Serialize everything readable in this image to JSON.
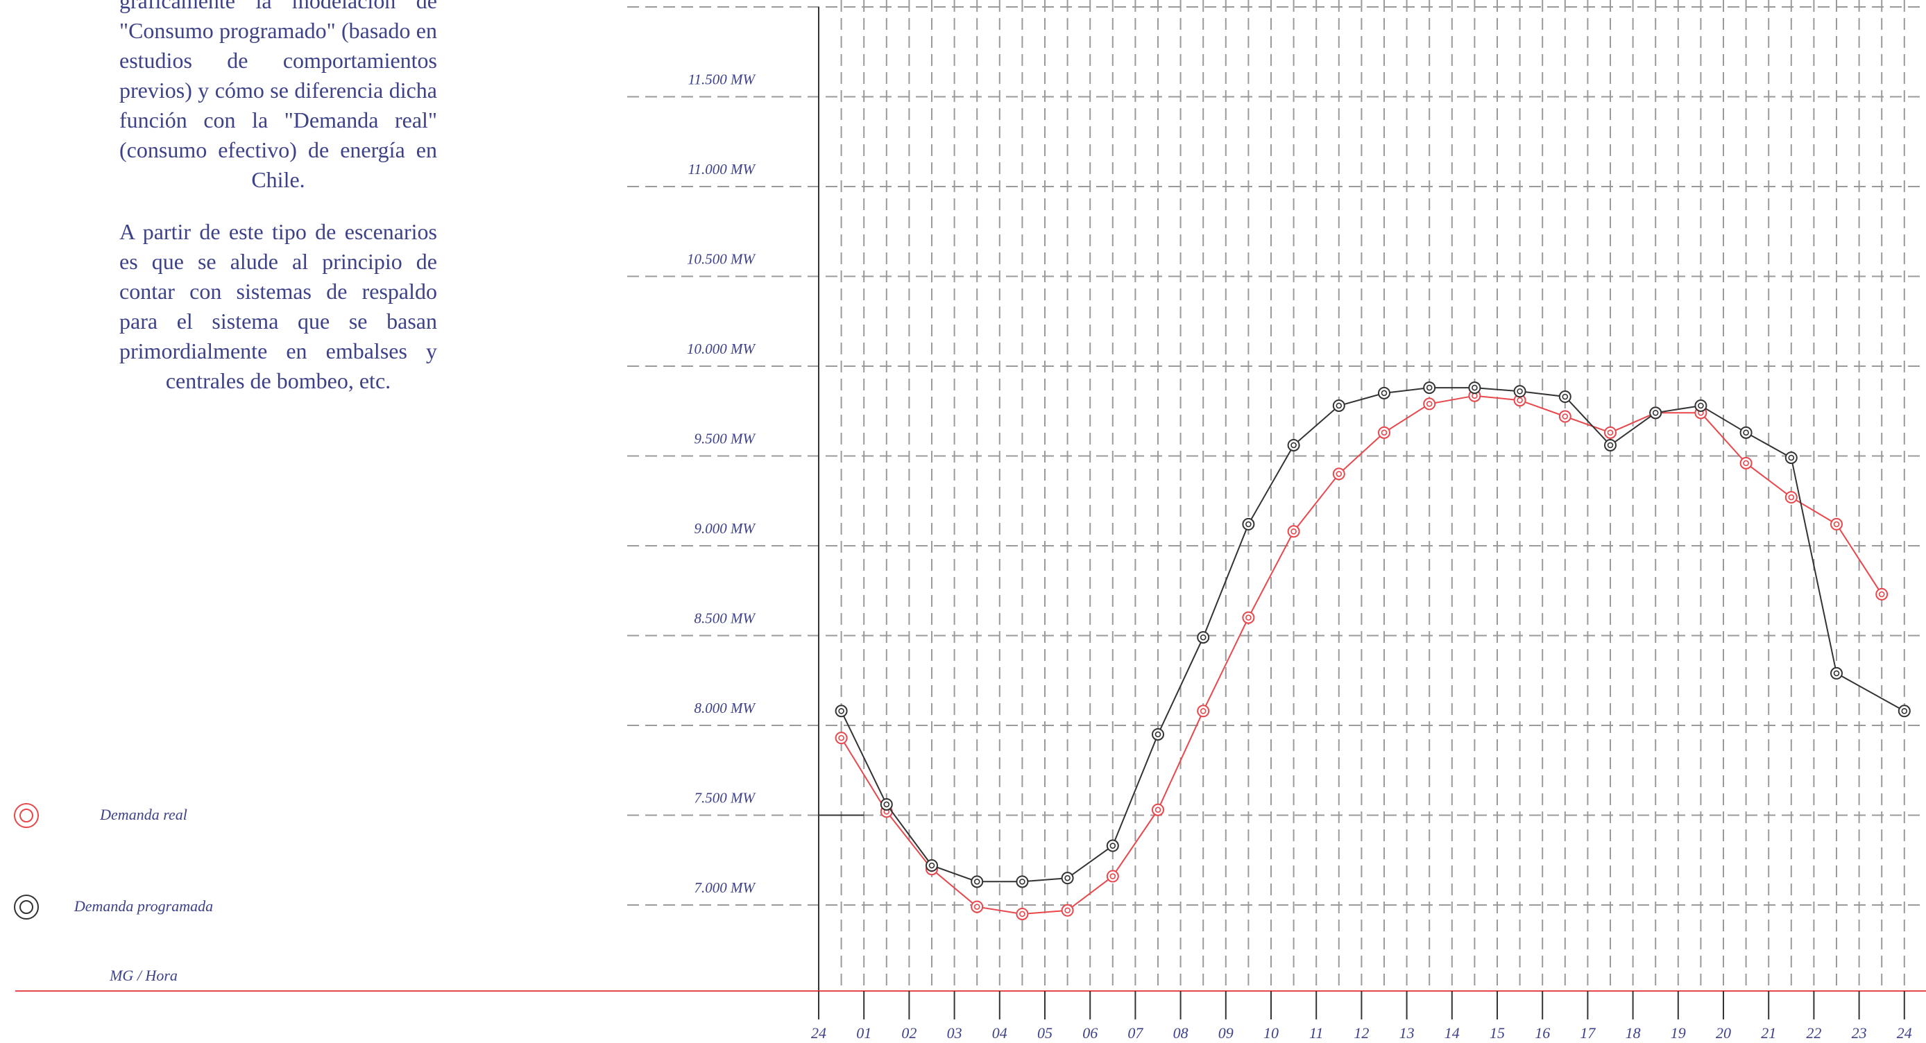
{
  "intro": {
    "paragraph_1": "gráficamente la modelación de \"Consumo programado\" (basado en estudios de comportamientos previos) y cómo se diferencia dicha función con la \"Demanda real\" (consumo efectivo) de energía en Chile.",
    "paragraph_2": "A partir de este tipo de escenarios es que se alude al principio de contar con sistemas de respaldo para el sistema que se basan primordialmente en embalses y centrales de bombeo, etc."
  },
  "legend": {
    "real_label": "Demanda real",
    "programmed_label": "Demanda programada",
    "units_label": "MG / Hora"
  },
  "colors": {
    "real": "#e8474c",
    "programmed": "#333333",
    "text": "#3d4288",
    "grid": "#9a9a9a",
    "axis": "#333333"
  },
  "chart_data": {
    "type": "line",
    "title": "",
    "xlabel": "MG / Hora",
    "ylabel": "",
    "x_tick_labels": [
      "24",
      "01",
      "02",
      "03",
      "04",
      "05",
      "06",
      "07",
      "08",
      "09",
      "10",
      "11",
      "12",
      "13",
      "14",
      "15",
      "16",
      "17",
      "18",
      "19",
      "20",
      "21",
      "22",
      "23",
      "24"
    ],
    "y_ticks": [
      7000,
      7500,
      8000,
      8500,
      9000,
      9500,
      10000,
      10500,
      11000,
      11500
    ],
    "y_tick_labels": [
      "7.000 MW",
      "7.500 MW",
      "8.000 MW",
      "8.500 MW",
      "9.000 MW",
      "9.500 MW",
      "10.000 MW",
      "10.500 MW",
      "11.000 MW",
      "11.500 MW"
    ],
    "ylim": [
      6520,
      12000
    ],
    "grid": true,
    "x": [
      0.5,
      1.5,
      2.5,
      3.5,
      4.5,
      5.5,
      6.5,
      7.5,
      8.5,
      9.5,
      10.5,
      11.5,
      12.5,
      13.5,
      14.5,
      15.5,
      16.5,
      17.5,
      18.5,
      19.5,
      20.5,
      21.5,
      22.5,
      23.5,
      24
    ],
    "series": [
      {
        "name": "Demanda real",
        "color": "#e8474c",
        "values": [
          7930,
          7520,
          7200,
          6990,
          6950,
          6970,
          7160,
          7530,
          8080,
          8600,
          9080,
          9400,
          9630,
          9790,
          9835,
          9810,
          9720,
          9630,
          9740,
          9740,
          9460,
          9270,
          9120,
          8730,
          null
        ]
      },
      {
        "name": "Demanda programada",
        "color": "#333333",
        "values": [
          8080,
          7560,
          7220,
          7130,
          7130,
          7150,
          7330,
          7950,
          8490,
          9120,
          9560,
          9780,
          9850,
          9880,
          9880,
          9860,
          9830,
          9560,
          9740,
          9780,
          9630,
          9490,
          8290,
          null,
          8080
        ]
      }
    ]
  }
}
